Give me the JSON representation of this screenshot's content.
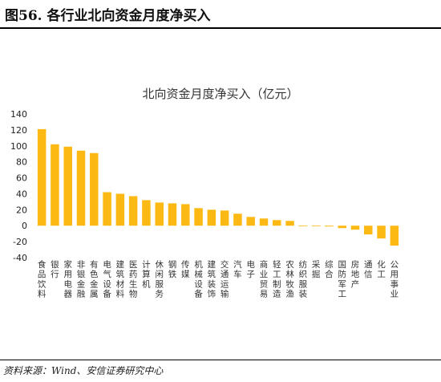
{
  "figure": {
    "title": "图56. 各行业北向资金月度净买入",
    "source": "资料来源：Wind、安信证券研究中心"
  },
  "chart_data": {
    "type": "bar",
    "title": "北向资金月度净买入（亿元）",
    "xlabel": "",
    "ylabel": "",
    "ylim": [
      -40,
      140
    ],
    "yticks": [
      140,
      120,
      100,
      80,
      60,
      40,
      20,
      0,
      -20,
      -40
    ],
    "grid": false,
    "legend": "none",
    "bar_color": "#FDB913",
    "categories": [
      "食品饮料",
      "银行",
      "家用电器",
      "非银金融",
      "有色金属",
      "电气设备",
      "建筑材料",
      "医药生物",
      "计算机",
      "休闲服务",
      "钢铁",
      "传媒",
      "机械设备",
      "建筑装饰",
      "交通运输",
      "汽车",
      "电子",
      "商业贸易",
      "轻工制造",
      "农林牧渔",
      "纺织服装",
      "采掘",
      "综合",
      "国防军工",
      "房地产",
      "通信",
      "化工",
      "公用事业"
    ],
    "values": [
      121,
      102,
      99,
      94,
      91,
      42,
      40,
      37,
      32,
      29,
      28,
      27,
      22,
      20,
      19,
      15,
      11,
      9,
      7,
      6,
      0,
      0,
      -1,
      -3,
      -5,
      -11,
      -16,
      -25
    ]
  }
}
